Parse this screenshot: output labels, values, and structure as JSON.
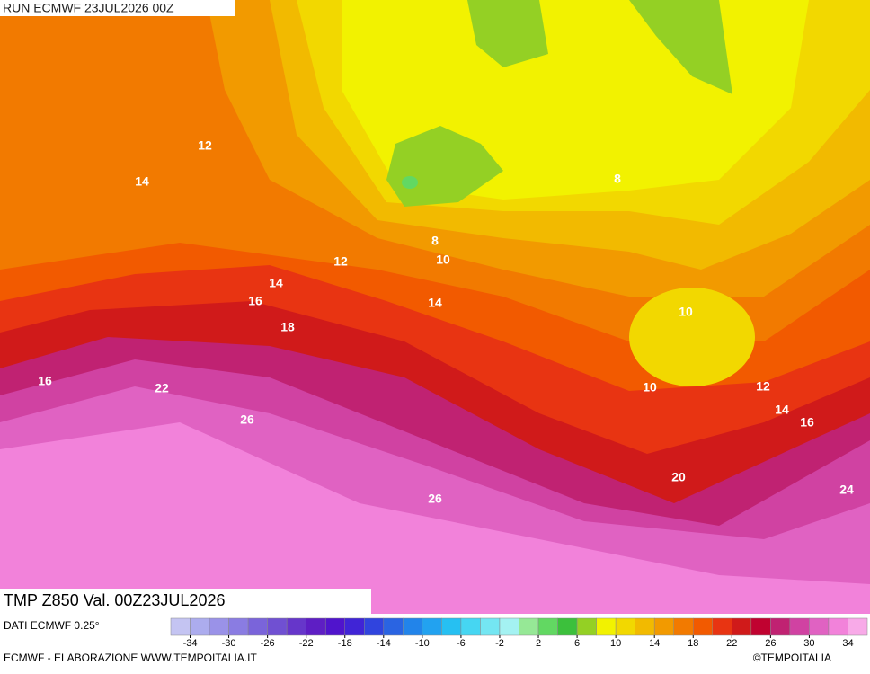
{
  "header": {
    "run": "RUN ECMWF 23JUL2026 00Z"
  },
  "map": {
    "title": "TMP Z850 Val. 00Z23JUL2026",
    "contour_labels": [
      12,
      14,
      8,
      8,
      10,
      12,
      14,
      16,
      14,
      18,
      10,
      16,
      22,
      10,
      12,
      14,
      16,
      26,
      20,
      26,
      24
    ]
  },
  "legend": {
    "source": "DATI ECMWF 0.25°",
    "colors": [
      "#c4c4f2",
      "#acacee",
      "#9a92e8",
      "#8a7ce2",
      "#7a64da",
      "#7050d2",
      "#6636ca",
      "#5e1ec4",
      "#5014cc",
      "#4024d6",
      "#3044de",
      "#2a64e2",
      "#2284ea",
      "#22a2f0",
      "#26c0f2",
      "#46d6f2",
      "#74e6f2",
      "#a4f2f2",
      "#96e896",
      "#62d862",
      "#3cc03c",
      "#94d024",
      "#f2f200",
      "#f2d800",
      "#f2ba00",
      "#f29a00",
      "#f27a00",
      "#f25a00",
      "#e83412",
      "#d01a1a",
      "#c00230",
      "#c02272",
      "#d042a2",
      "#e062c2",
      "#f282da",
      "#f8aae8"
    ],
    "ticks": [
      -34,
      -30,
      -26,
      -22,
      -18,
      -14,
      -10,
      -6,
      -2,
      2,
      6,
      10,
      14,
      18,
      22,
      26,
      30,
      34
    ]
  },
  "footer": {
    "left": "ECMWF - ELABORAZIONE WWW.TEMPOITALIA.IT",
    "right": "©TEMPOITALIA"
  }
}
